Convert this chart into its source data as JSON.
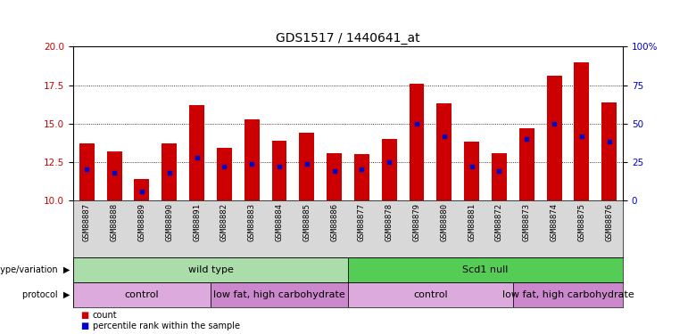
{
  "title": "GDS1517 / 1440641_at",
  "samples": [
    "GSM88887",
    "GSM88888",
    "GSM88889",
    "GSM88890",
    "GSM88891",
    "GSM88882",
    "GSM88883",
    "GSM88884",
    "GSM88885",
    "GSM88886",
    "GSM88877",
    "GSM88878",
    "GSM88879",
    "GSM88880",
    "GSM88881",
    "GSM88872",
    "GSM88873",
    "GSM88874",
    "GSM88875",
    "GSM88876"
  ],
  "counts": [
    13.7,
    13.2,
    11.4,
    13.7,
    16.2,
    13.4,
    15.3,
    13.9,
    14.4,
    13.1,
    13.0,
    14.0,
    17.6,
    16.3,
    13.8,
    13.1,
    14.7,
    18.1,
    19.0,
    16.4
  ],
  "percentile_rank": [
    20,
    18,
    6,
    18,
    28,
    22,
    24,
    22,
    24,
    19,
    20,
    25,
    50,
    42,
    22,
    19,
    40,
    50,
    42,
    38
  ],
  "bar_color": "#cc0000",
  "blue_color": "#0000cc",
  "ylim_left": [
    10,
    20
  ],
  "ylim_right": [
    0,
    100
  ],
  "yticks_left": [
    10,
    12.5,
    15,
    17.5,
    20
  ],
  "yticks_right": [
    0,
    25,
    50,
    75,
    100
  ],
  "genotype_groups": [
    {
      "label": "wild type",
      "start": 0,
      "end": 10,
      "color": "#aaddaa"
    },
    {
      "label": "Scd1 null",
      "start": 10,
      "end": 20,
      "color": "#55cc55"
    }
  ],
  "protocol_groups": [
    {
      "label": "control",
      "start": 0,
      "end": 5,
      "color": "#ddaadd"
    },
    {
      "label": "low fat, high carbohydrate",
      "start": 5,
      "end": 10,
      "color": "#cc88cc"
    },
    {
      "label": "control",
      "start": 10,
      "end": 16,
      "color": "#ddaadd"
    },
    {
      "label": "low fat, high carbohydrate",
      "start": 16,
      "end": 20,
      "color": "#cc88cc"
    }
  ],
  "legend_items": [
    {
      "label": "count",
      "color": "#cc0000"
    },
    {
      "label": "percentile rank within the sample",
      "color": "#0000cc"
    }
  ],
  "title_fontsize": 10,
  "tick_fontsize": 6.5,
  "label_fontsize": 8,
  "row_label_fontsize": 7
}
